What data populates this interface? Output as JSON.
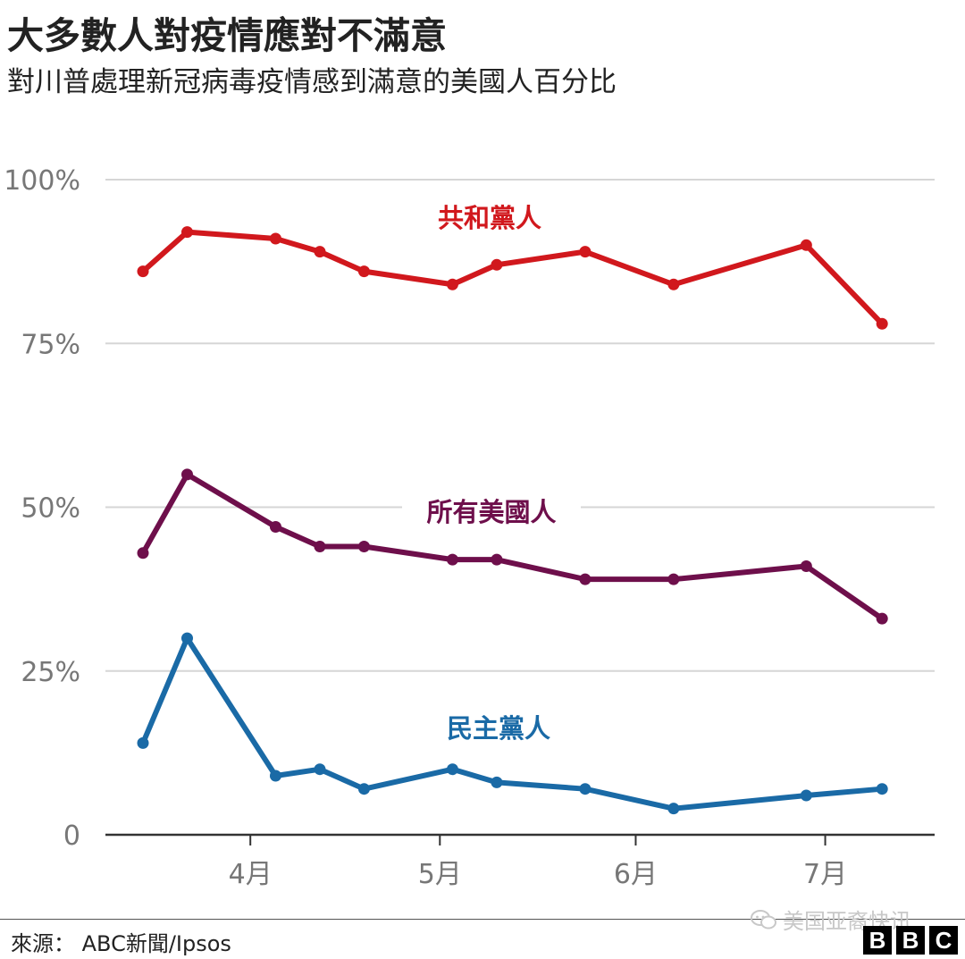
{
  "title": "大多數人對疫情應對不滿意",
  "subtitle": "對川普處理新冠病毒疫情感到滿意的美國人百分比",
  "source": "來源： ABC新聞/Ipsos",
  "watermark": "美国亚裔快讯",
  "logo": [
    "B",
    "B",
    "C"
  ],
  "chart_data": {
    "type": "line",
    "x": [
      "2020-03-15",
      "2020-03-22",
      "2020-04-05",
      "2020-04-12",
      "2020-04-19",
      "2020-05-03",
      "2020-05-10",
      "2020-05-24",
      "2020-06-07",
      "2020-06-28",
      "2020-07-10"
    ],
    "xlabel": "",
    "ylabel": "",
    "ylim": [
      0,
      100
    ],
    "y_ticks": [
      {
        "value": 0,
        "label": "0"
      },
      {
        "value": 25,
        "label": "25%"
      },
      {
        "value": 50,
        "label": "50%"
      },
      {
        "value": 75,
        "label": "75%"
      },
      {
        "value": 100,
        "label": "100%"
      }
    ],
    "x_ticks": [
      {
        "date": "2020-04-01",
        "label": "4月"
      },
      {
        "date": "2020-05-01",
        "label": "5月"
      },
      {
        "date": "2020-06-01",
        "label": "6月"
      },
      {
        "date": "2020-07-01",
        "label": "7月"
      }
    ],
    "grid": true,
    "legend": "inline labels",
    "series": [
      {
        "name": "共和黨人",
        "color": "#d1181d",
        "values": [
          86,
          92,
          91,
          89,
          86,
          84,
          87,
          89,
          84,
          90,
          78
        ]
      },
      {
        "name": "所有美國人",
        "color": "#6e0f4b",
        "values": [
          43,
          55,
          47,
          44,
          44,
          42,
          42,
          39,
          39,
          41,
          33
        ]
      },
      {
        "name": "民主黨人",
        "color": "#1a6aa6",
        "values": [
          14,
          30,
          9,
          10,
          7,
          10,
          8,
          7,
          4,
          6,
          7
        ]
      }
    ]
  }
}
